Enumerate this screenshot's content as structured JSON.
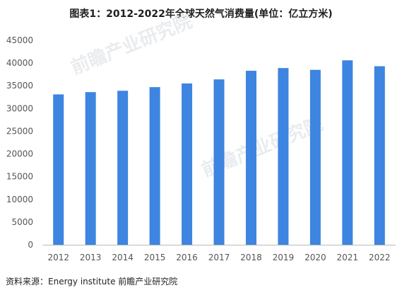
{
  "source_text": "资料来源：Energy institute 前瞻产业研究院",
  "colors": {
    "bar": "#3d85e0",
    "axis": "#bbbbbb",
    "text": "#555555"
  },
  "chart_data": {
    "type": "bar",
    "title": "图表1：2012-2022年全球天然气消费量(单位：亿立方米)",
    "categories": [
      "2012",
      "2013",
      "2014",
      "2015",
      "2016",
      "2017",
      "2018",
      "2019",
      "2020",
      "2021",
      "2022"
    ],
    "values": [
      33100,
      33600,
      33900,
      34700,
      35500,
      36400,
      38300,
      38900,
      38500,
      40600,
      39300
    ],
    "ylim": [
      0,
      45000
    ],
    "yticks": [
      0,
      5000,
      10000,
      15000,
      20000,
      25000,
      30000,
      35000,
      40000,
      45000
    ],
    "grid": false
  }
}
